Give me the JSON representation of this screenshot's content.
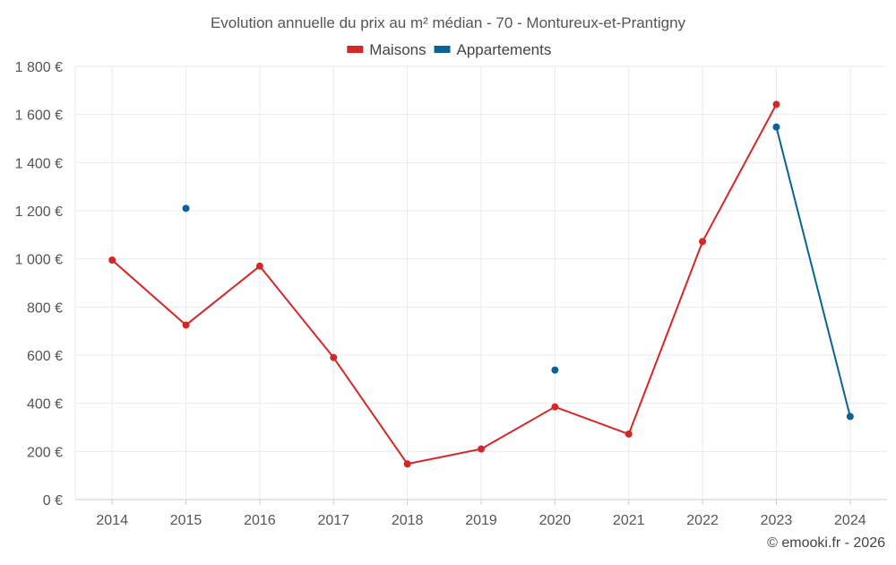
{
  "chart_data": {
    "type": "line",
    "title": "Evolution annuelle du prix au m² médian - 70 - Montureux-et-Prantigny",
    "categories": [
      "2014",
      "2015",
      "2016",
      "2017",
      "2018",
      "2019",
      "2020",
      "2021",
      "2022",
      "2023",
      "2024"
    ],
    "ylim": [
      0,
      1800
    ],
    "yticks": [
      0,
      200,
      400,
      600,
      800,
      1000,
      1200,
      1400,
      1600,
      1800
    ],
    "ytick_labels": [
      "0 €",
      "200 €",
      "400 €",
      "600 €",
      "800 €",
      "1 000 €",
      "1 200 €",
      "1 400 €",
      "1 600 €",
      "1 800 €"
    ],
    "grid": true,
    "legend_position": "top-center",
    "series": [
      {
        "name": "Maisons",
        "color": "#d62728",
        "values": [
          995,
          725,
          970,
          590,
          148,
          210,
          385,
          272,
          1072,
          1642,
          null
        ]
      },
      {
        "name": "Appartements",
        "color": "#0a6296",
        "values": [
          null,
          1210,
          null,
          null,
          null,
          null,
          538,
          null,
          null,
          1548,
          345
        ]
      }
    ]
  },
  "credit": "© emooki.fr - 2026"
}
